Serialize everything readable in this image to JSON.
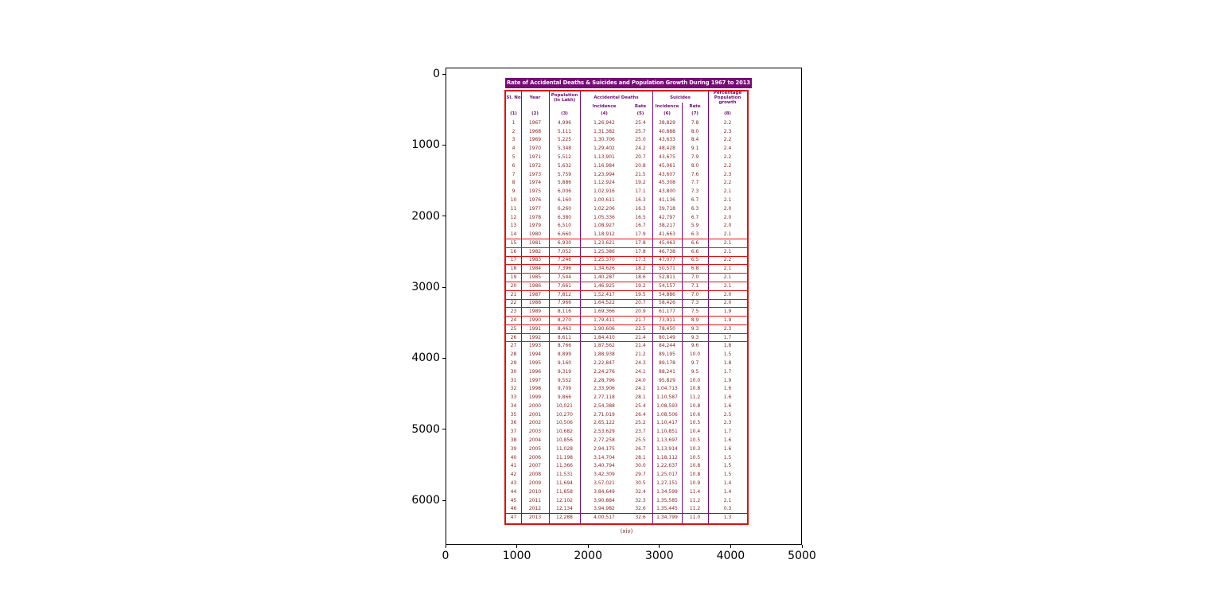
{
  "figure": {
    "x_ticks": [
      0,
      1000,
      2000,
      3000,
      4000,
      5000
    ],
    "y_ticks": [
      0,
      1000,
      2000,
      3000,
      4000,
      5000,
      6000
    ]
  },
  "colors": {
    "title_bar_purple": "#760b76",
    "grid_purple": "#7a0b7a",
    "rule_red": "#e01010",
    "data_text_maroon": "#8b1f1f",
    "header_text_purple": "#6e0a6e"
  },
  "chart_data": {
    "type": "table",
    "title": "Rate of Accidental Deaths & Suicides and Population Growth During 1967 to 2013",
    "caption": "(xiv)",
    "column_groups": [
      {
        "label": "Sl. No",
        "cols": 1
      },
      {
        "label": "Year",
        "cols": 1
      },
      {
        "label": "Population (in Lakh)",
        "cols": 1
      },
      {
        "label": "Accidental Deaths",
        "cols": 2
      },
      {
        "label": "Suicides",
        "cols": 2
      },
      {
        "label": "Percentage Population growth",
        "cols": 1
      }
    ],
    "sub_headers": [
      "Incidence",
      "Rate",
      "Incidence",
      "Rate"
    ],
    "column_numbers": [
      "(1)",
      "(2)",
      "(3)",
      "(4)",
      "(5)",
      "(6)",
      "(7)",
      "(8)"
    ],
    "rows": [
      [
        "1",
        "1967",
        "4,996",
        "1,26,942",
        "25.4",
        "38,829",
        "7.8",
        "2.2"
      ],
      [
        "2",
        "1968",
        "5,111",
        "1,31,382",
        "25.7",
        "40,888",
        "8.0",
        "2.3"
      ],
      [
        "3",
        "1969",
        "5,225",
        "1,30,706",
        "25.0",
        "43,633",
        "8.4",
        "2.2"
      ],
      [
        "4",
        "1970",
        "5,348",
        "1,29,402",
        "24.2",
        "48,428",
        "9.1",
        "2.4"
      ],
      [
        "5",
        "1971",
        "5,512",
        "1,13,901",
        "20.7",
        "43,675",
        "7.9",
        "2.2"
      ],
      [
        "6",
        "1972",
        "5,632",
        "1,16,984",
        "20.8",
        "45,061",
        "8.0",
        "2.2"
      ],
      [
        "7",
        "1973",
        "5,759",
        "1,23,994",
        "21.5",
        "43,607",
        "7.6",
        "2.3"
      ],
      [
        "8",
        "1974",
        "5,886",
        "1,12,924",
        "19.2",
        "45,308",
        "7.7",
        "2.2"
      ],
      [
        "9",
        "1975",
        "6,006",
        "1,02,916",
        "17.1",
        "43,800",
        "7.3",
        "2.1"
      ],
      [
        "10",
        "1976",
        "6,160",
        "1,00,611",
        "16.3",
        "41,136",
        "6.7",
        "2.1"
      ],
      [
        "11",
        "1977",
        "6,260",
        "1,02,206",
        "16.3",
        "39,718",
        "6.3",
        "2.0"
      ],
      [
        "12",
        "1978",
        "6,380",
        "1,05,336",
        "16.5",
        "42,797",
        "6.7",
        "2.0"
      ],
      [
        "13",
        "1979",
        "6,510",
        "1,08,927",
        "16.7",
        "38,217",
        "5.9",
        "2.0"
      ],
      [
        "14",
        "1980",
        "6,660",
        "1,18,912",
        "17.9",
        "41,663",
        "6.3",
        "2.1"
      ],
      [
        "15",
        "1981",
        "6,930",
        "1,23,621",
        "17.8",
        "45,463",
        "6.6",
        "2.1"
      ],
      [
        "16",
        "1982",
        "7,052",
        "1,25,386",
        "17.8",
        "46,738",
        "6.6",
        "2.1"
      ],
      [
        "17",
        "1983",
        "7,246",
        "1,25,370",
        "17.3",
        "47,077",
        "6.5",
        "2.2"
      ],
      [
        "18",
        "1984",
        "7,396",
        "1,34,626",
        "18.2",
        "50,571",
        "6.8",
        "2.1"
      ],
      [
        "19",
        "1985",
        "7,544",
        "1,40,287",
        "18.6",
        "52,811",
        "7.0",
        "2.1"
      ],
      [
        "20",
        "1986",
        "7,661",
        "1,46,925",
        "19.2",
        "54,157",
        "7.1",
        "2.1"
      ],
      [
        "21",
        "1987",
        "7,812",
        "1,52,417",
        "19.5",
        "54,886",
        "7.0",
        "2.0"
      ],
      [
        "22",
        "1988",
        "7,966",
        "1,64,522",
        "20.7",
        "58,426",
        "7.3",
        "2.0"
      ],
      [
        "23",
        "1989",
        "8,116",
        "1,69,366",
        "20.9",
        "61,177",
        "7.5",
        "1.9"
      ],
      [
        "24",
        "1990",
        "8,270",
        "1,79,411",
        "21.7",
        "73,911",
        "8.9",
        "1.9"
      ],
      [
        "25",
        "1991",
        "8,463",
        "1,90,606",
        "22.5",
        "78,450",
        "9.3",
        "2.3"
      ],
      [
        "26",
        "1992",
        "8,611",
        "1,84,410",
        "21.4",
        "80,149",
        "9.3",
        "1.7"
      ],
      [
        "27",
        "1993",
        "8,766",
        "1,87,562",
        "21.4",
        "84,244",
        "9.6",
        "1.8"
      ],
      [
        "28",
        "1994",
        "8,899",
        "1,88,938",
        "21.2",
        "89,195",
        "10.0",
        "1.5"
      ],
      [
        "29",
        "1995",
        "9,160",
        "2,22,847",
        "24.3",
        "89,178",
        "9.7",
        "1.8"
      ],
      [
        "30",
        "1996",
        "9,319",
        "2,24,276",
        "24.1",
        "88,241",
        "9.5",
        "1.7"
      ],
      [
        "31",
        "1997",
        "9,552",
        "2,28,796",
        "24.0",
        "95,829",
        "10.0",
        "1.9"
      ],
      [
        "32",
        "1998",
        "9,709",
        "2,33,906",
        "24.1",
        "1,04,713",
        "10.8",
        "1.6"
      ],
      [
        "33",
        "1999",
        "9,866",
        "2,77,118",
        "28.1",
        "1,10,587",
        "11.2",
        "1.6"
      ],
      [
        "34",
        "2000",
        "10,021",
        "2,54,388",
        "25.4",
        "1,08,593",
        "10.8",
        "1.6"
      ],
      [
        "35",
        "2001",
        "10,270",
        "2,71,019",
        "26.4",
        "1,08,506",
        "10.6",
        "2.5"
      ],
      [
        "36",
        "2002",
        "10,506",
        "2,65,122",
        "25.2",
        "1,10,417",
        "10.5",
        "2.3"
      ],
      [
        "37",
        "2003",
        "10,682",
        "2,53,629",
        "23.7",
        "1,10,851",
        "10.4",
        "1.7"
      ],
      [
        "38",
        "2004",
        "10,856",
        "2,77,258",
        "25.5",
        "1,13,697",
        "10.5",
        "1.6"
      ],
      [
        "39",
        "2005",
        "11,028",
        "2,94,175",
        "26.7",
        "1,13,914",
        "10.3",
        "1.6"
      ],
      [
        "40",
        "2006",
        "11,198",
        "3,14,704",
        "28.1",
        "1,18,112",
        "10.5",
        "1.5"
      ],
      [
        "41",
        "2007",
        "11,366",
        "3,40,794",
        "30.0",
        "1,22,637",
        "10.8",
        "1.5"
      ],
      [
        "42",
        "2008",
        "11,531",
        "3,42,309",
        "29.7",
        "1,25,017",
        "10.8",
        "1.5"
      ],
      [
        "43",
        "2009",
        "11,694",
        "3,57,021",
        "30.5",
        "1,27,151",
        "10.9",
        "1.4"
      ],
      [
        "44",
        "2010",
        "11,858",
        "3,84,649",
        "32.4",
        "1,34,599",
        "11.4",
        "1.4"
      ],
      [
        "45",
        "2011",
        "12,102",
        "3,90,884",
        "32.3",
        "1,35,585",
        "11.2",
        "2.1"
      ],
      [
        "46",
        "2012",
        "12,134",
        "3,94,982",
        "32.6",
        "1,35,445",
        "11.2",
        "0.3"
      ],
      [
        "47",
        "2013",
        "12,288",
        "4,00,517",
        "32.6",
        "1,34,799",
        "11.0",
        "1.3"
      ]
    ]
  }
}
